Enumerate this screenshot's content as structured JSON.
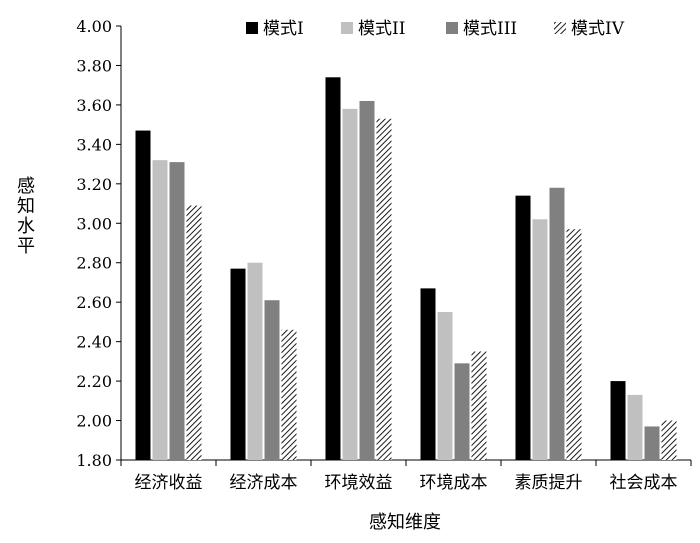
{
  "chart_data": {
    "type": "bar",
    "title": "",
    "xlabel": "感知维度",
    "ylabel": "感知水平",
    "ylim": [
      1.8,
      4.0
    ],
    "ytick_step": 0.2,
    "legend_position": "top-right",
    "grid": false,
    "categories": [
      "经济收益",
      "经济成本",
      "环境效益",
      "环境成本",
      "素质提升",
      "社会成本"
    ],
    "series": [
      {
        "name": "模式I",
        "color": "#000000",
        "fill_style": "solid",
        "values": [
          3.47,
          2.77,
          3.74,
          2.67,
          3.14,
          2.2
        ]
      },
      {
        "name": "模式II",
        "color": "#c0c0c0",
        "fill_style": "solid",
        "values": [
          3.32,
          2.8,
          3.58,
          2.55,
          3.02,
          2.13
        ]
      },
      {
        "name": "模式III",
        "color": "#808080",
        "fill_style": "solid",
        "values": [
          3.31,
          2.61,
          3.62,
          2.29,
          3.18,
          1.97
        ]
      },
      {
        "name": "模式IV",
        "color": "#000000",
        "fill_style": "hatched",
        "values": [
          3.09,
          2.46,
          3.53,
          2.35,
          2.97,
          2.0
        ]
      }
    ]
  }
}
